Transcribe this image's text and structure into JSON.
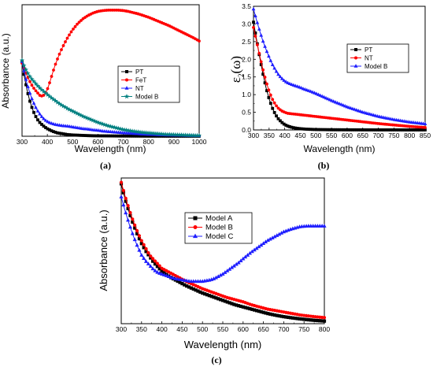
{
  "chart_data": [
    {
      "id": "a",
      "type": "line",
      "panel_label": "(a)",
      "xlabel": "Wavelength (nm)",
      "ylabel": "Absorbance (a.u.)",
      "xlim": [
        300,
        1000
      ],
      "ylim": [
        0,
        3.15
      ],
      "x_ticks": [
        300,
        400,
        500,
        600,
        700,
        800,
        900,
        1000
      ],
      "y_ticks": [],
      "legend_position": "center-right",
      "series": [
        {
          "name": "PT",
          "color": "#000000",
          "marker": "square",
          "x": [
            300,
            310,
            320,
            330,
            340,
            350,
            360,
            370,
            380,
            390,
            400,
            410,
            420,
            430,
            440,
            450,
            460,
            470,
            480,
            490,
            500,
            520,
            540,
            560,
            580,
            600,
            640,
            680,
            720,
            760,
            800,
            840,
            880,
            920,
            960,
            1000
          ],
          "y": [
            1.78,
            1.4,
            1.1,
            0.86,
            0.67,
            0.52,
            0.41,
            0.33,
            0.27,
            0.22,
            0.18,
            0.15,
            0.12,
            0.1,
            0.08,
            0.07,
            0.06,
            0.05,
            0.04,
            0.035,
            0.03,
            0.025,
            0.02,
            0.015,
            0.012,
            0.01,
            0.008,
            0.006,
            0.005,
            0.004,
            0.003,
            0.003,
            0.002,
            0.002,
            0.002,
            0.002
          ]
        },
        {
          "name": "FeT",
          "color": "#ff0000",
          "marker": "circle",
          "x": [
            300,
            310,
            320,
            330,
            340,
            350,
            360,
            370,
            380,
            390,
            400,
            410,
            420,
            430,
            440,
            450,
            460,
            470,
            480,
            490,
            500,
            520,
            540,
            560,
            580,
            600,
            620,
            640,
            660,
            680,
            700,
            720,
            740,
            760,
            780,
            800,
            820,
            840,
            860,
            880,
            900,
            920,
            940,
            960,
            980,
            1000
          ],
          "y": [
            1.75,
            1.6,
            1.45,
            1.32,
            1.21,
            1.12,
            1.05,
            0.98,
            0.96,
            1.0,
            1.12,
            1.3,
            1.5,
            1.69,
            1.85,
            2.0,
            2.13,
            2.25,
            2.36,
            2.46,
            2.55,
            2.7,
            2.81,
            2.89,
            2.95,
            2.99,
            3.01,
            3.02,
            3.02,
            3.02,
            3.01,
            2.99,
            2.96,
            2.93,
            2.89,
            2.85,
            2.8,
            2.75,
            2.7,
            2.65,
            2.59,
            2.53,
            2.47,
            2.41,
            2.35,
            2.28
          ]
        },
        {
          "name": "NT",
          "color": "#1f1fff",
          "marker": "triangle",
          "x": [
            300,
            310,
            320,
            330,
            340,
            350,
            360,
            370,
            380,
            390,
            400,
            410,
            420,
            430,
            440,
            450,
            460,
            470,
            480,
            490,
            500,
            520,
            540,
            560,
            580,
            600,
            620,
            640,
            660,
            680,
            700,
            740,
            780,
            820,
            860,
            900,
            940,
            980,
            1000
          ],
          "y": [
            1.79,
            1.5,
            1.25,
            1.05,
            0.88,
            0.74,
            0.62,
            0.53,
            0.45,
            0.39,
            0.35,
            0.32,
            0.3,
            0.28,
            0.27,
            0.26,
            0.25,
            0.245,
            0.24,
            0.23,
            0.22,
            0.2,
            0.18,
            0.17,
            0.15,
            0.14,
            0.12,
            0.11,
            0.1,
            0.09,
            0.08,
            0.065,
            0.05,
            0.04,
            0.03,
            0.025,
            0.02,
            0.015,
            0.012
          ]
        },
        {
          "name": "Model B",
          "color": "#008080",
          "marker": "star",
          "x": [
            300,
            310,
            320,
            330,
            340,
            350,
            360,
            370,
            380,
            390,
            400,
            410,
            420,
            430,
            440,
            450,
            460,
            470,
            480,
            490,
            500,
            520,
            540,
            560,
            580,
            600,
            620,
            640,
            660,
            680,
            700,
            740,
            780,
            820,
            860,
            900,
            940,
            980,
            1000
          ],
          "y": [
            1.82,
            1.66,
            1.54,
            1.44,
            1.36,
            1.29,
            1.22,
            1.16,
            1.1,
            1.05,
            1.0,
            0.95,
            0.9,
            0.86,
            0.81,
            0.77,
            0.73,
            0.7,
            0.66,
            0.63,
            0.6,
            0.54,
            0.48,
            0.43,
            0.38,
            0.33,
            0.29,
            0.25,
            0.22,
            0.19,
            0.16,
            0.12,
            0.09,
            0.07,
            0.05,
            0.04,
            0.03,
            0.02,
            0.02
          ]
        }
      ]
    },
    {
      "id": "b",
      "type": "line",
      "panel_label": "(b)",
      "xlabel": "Wavelength (nm)",
      "ylabel_base": "ε",
      "ylabel_sub": "2",
      "ylabel_arg": "(ω)",
      "xlim": [
        300,
        850
      ],
      "ylim": [
        0,
        3.5
      ],
      "x_ticks": [
        300,
        350,
        400,
        450,
        500,
        550,
        600,
        650,
        700,
        750,
        800,
        850
      ],
      "y_ticks": [
        0.0,
        0.5,
        1.0,
        1.5,
        2.0,
        2.5,
        3.0,
        3.5
      ],
      "y_tick_labels": [
        "0.0",
        "0.5",
        "1.0",
        "1.5",
        "2.0",
        "2.5",
        "3.0",
        "3.5"
      ],
      "legend_position": "top-right",
      "series": [
        {
          "name": "PT",
          "color": "#000000",
          "marker": "square",
          "x": [
            300,
            310,
            320,
            330,
            340,
            350,
            360,
            370,
            380,
            390,
            400,
            410,
            420,
            430,
            440,
            450,
            460,
            470,
            480,
            500,
            520,
            550,
            600,
            650,
            700,
            750,
            800,
            850
          ],
          "y": [
            3.05,
            2.55,
            2.05,
            1.6,
            1.2,
            0.88,
            0.63,
            0.44,
            0.31,
            0.22,
            0.15,
            0.11,
            0.08,
            0.06,
            0.045,
            0.035,
            0.028,
            0.022,
            0.018,
            0.012,
            0.009,
            0.006,
            0.004,
            0.003,
            0.002,
            0.002,
            0.001,
            0.001
          ]
        },
        {
          "name": "NT",
          "color": "#ff0000",
          "marker": "circle",
          "x": [
            300,
            310,
            320,
            330,
            340,
            350,
            360,
            370,
            380,
            390,
            400,
            410,
            420,
            430,
            440,
            450,
            460,
            480,
            500,
            520,
            550,
            600,
            650,
            700,
            750,
            800,
            850
          ],
          "y": [
            2.9,
            2.5,
            2.1,
            1.72,
            1.38,
            1.1,
            0.88,
            0.72,
            0.61,
            0.54,
            0.5,
            0.47,
            0.46,
            0.45,
            0.44,
            0.43,
            0.42,
            0.4,
            0.38,
            0.36,
            0.33,
            0.28,
            0.23,
            0.18,
            0.14,
            0.1,
            0.07
          ]
        },
        {
          "name": "Model B",
          "color": "#1f1fff",
          "marker": "triangle",
          "x": [
            300,
            310,
            320,
            330,
            340,
            350,
            360,
            370,
            380,
            390,
            400,
            410,
            420,
            430,
            440,
            450,
            460,
            480,
            500,
            520,
            550,
            600,
            650,
            700,
            750,
            800,
            850
          ],
          "y": [
            3.42,
            3.1,
            2.8,
            2.52,
            2.28,
            2.06,
            1.86,
            1.7,
            1.56,
            1.46,
            1.38,
            1.33,
            1.29,
            1.26,
            1.23,
            1.2,
            1.16,
            1.1,
            1.03,
            0.95,
            0.83,
            0.65,
            0.5,
            0.38,
            0.29,
            0.22,
            0.17
          ]
        }
      ]
    },
    {
      "id": "c",
      "type": "line",
      "panel_label": "(c)",
      "xlabel": "Wavelength (nm)",
      "ylabel": "Absorbance (a.u.)",
      "xlim": [
        300,
        800
      ],
      "ylim": [
        0,
        1.0
      ],
      "x_ticks": [
        300,
        350,
        400,
        450,
        500,
        550,
        600,
        650,
        700,
        750,
        800
      ],
      "y_ticks": [],
      "legend_position": "top-right",
      "series": [
        {
          "name": "Model A",
          "color": "#000000",
          "marker": "square",
          "x": [
            300,
            310,
            320,
            330,
            340,
            350,
            360,
            370,
            380,
            390,
            400,
            420,
            440,
            460,
            480,
            500,
            520,
            540,
            560,
            580,
            600,
            620,
            640,
            660,
            680,
            700,
            720,
            740,
            760,
            780,
            800
          ],
          "y": [
            0.96,
            0.85,
            0.76,
            0.68,
            0.61,
            0.55,
            0.5,
            0.46,
            0.42,
            0.39,
            0.36,
            0.32,
            0.29,
            0.26,
            0.235,
            0.21,
            0.19,
            0.17,
            0.15,
            0.13,
            0.115,
            0.1,
            0.085,
            0.07,
            0.058,
            0.048,
            0.04,
            0.033,
            0.027,
            0.022,
            0.018
          ]
        },
        {
          "name": "Model B",
          "color": "#ff0000",
          "marker": "circle",
          "x": [
            300,
            310,
            320,
            330,
            340,
            350,
            360,
            370,
            380,
            390,
            400,
            420,
            440,
            460,
            480,
            500,
            520,
            540,
            560,
            580,
            600,
            620,
            640,
            660,
            680,
            700,
            720,
            740,
            760,
            780,
            800
          ],
          "y": [
            0.97,
            0.87,
            0.78,
            0.7,
            0.63,
            0.57,
            0.52,
            0.47,
            0.44,
            0.41,
            0.38,
            0.35,
            0.32,
            0.29,
            0.265,
            0.24,
            0.22,
            0.2,
            0.18,
            0.165,
            0.15,
            0.13,
            0.115,
            0.1,
            0.09,
            0.08,
            0.07,
            0.06,
            0.053,
            0.047,
            0.042
          ]
        },
        {
          "name": "Model C",
          "color": "#1f1fff",
          "marker": "triangle",
          "x": [
            300,
            310,
            320,
            330,
            340,
            350,
            360,
            370,
            380,
            390,
            400,
            410,
            420,
            430,
            440,
            450,
            460,
            470,
            480,
            490,
            500,
            510,
            520,
            530,
            540,
            550,
            560,
            570,
            580,
            590,
            600,
            620,
            640,
            660,
            680,
            700,
            720,
            740,
            760,
            780,
            800
          ],
          "y": [
            0.87,
            0.77,
            0.68,
            0.6,
            0.53,
            0.47,
            0.43,
            0.4,
            0.37,
            0.35,
            0.34,
            0.33,
            0.32,
            0.31,
            0.305,
            0.3,
            0.295,
            0.29,
            0.29,
            0.29,
            0.29,
            0.295,
            0.3,
            0.31,
            0.325,
            0.34,
            0.36,
            0.38,
            0.4,
            0.42,
            0.445,
            0.49,
            0.53,
            0.57,
            0.6,
            0.63,
            0.65,
            0.665,
            0.67,
            0.67,
            0.67
          ]
        }
      ]
    }
  ]
}
